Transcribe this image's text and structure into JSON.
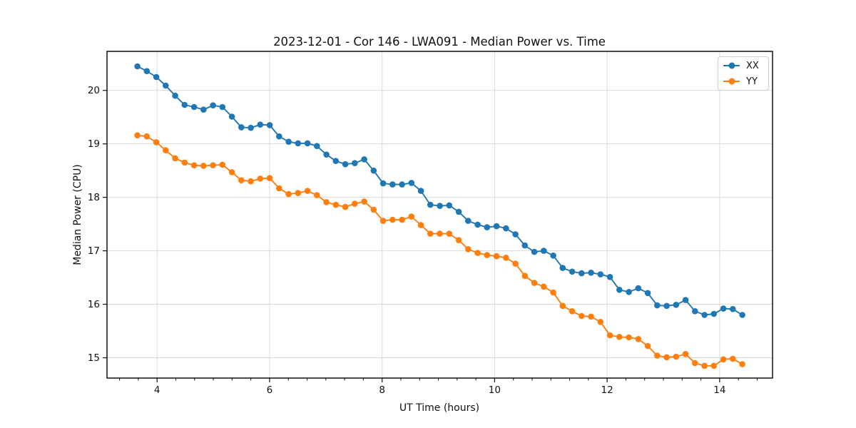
{
  "chart_data": {
    "type": "line",
    "title": "2023-12-01 - Cor 146 - LWA091 - Median Power vs. Time",
    "xlabel": "UT Time (hours)",
    "ylabel": "Median Power (CPU)",
    "xlim": [
      3.11,
      14.94
    ],
    "ylim": [
      14.62,
      20.73
    ],
    "x_ticks": [
      4,
      6,
      8,
      10,
      12,
      14
    ],
    "y_ticks": [
      15,
      16,
      17,
      18,
      19,
      20
    ],
    "x_minor_tick_step": 0.33333,
    "grid": true,
    "legend_position": "upper right",
    "colors": {
      "XX": "#1f77b4",
      "YY": "#ff7f0e"
    },
    "grid_color": "#d9d9d9",
    "x": [
      3.65,
      3.818,
      3.986,
      4.154,
      4.322,
      4.49,
      4.658,
      4.826,
      4.994,
      5.162,
      5.33,
      5.498,
      5.666,
      5.834,
      6.002,
      6.17,
      6.338,
      6.506,
      6.674,
      6.842,
      7.01,
      7.178,
      7.346,
      7.514,
      7.682,
      7.85,
      8.018,
      8.186,
      8.354,
      8.522,
      8.69,
      8.858,
      9.026,
      9.194,
      9.362,
      9.53,
      9.698,
      9.866,
      10.034,
      10.202,
      10.37,
      10.538,
      10.706,
      10.874,
      11.042,
      11.21,
      11.378,
      11.546,
      11.714,
      11.882,
      12.05,
      12.218,
      12.386,
      12.554,
      12.722,
      12.89,
      13.058,
      13.226,
      13.394,
      13.562,
      13.73,
      13.898,
      14.066,
      14.234,
      14.402
    ],
    "series": [
      {
        "name": "XX",
        "values": [
          20.45,
          20.36,
          20.25,
          20.09,
          19.9,
          19.73,
          19.69,
          19.64,
          19.72,
          19.69,
          19.51,
          19.31,
          19.3,
          19.36,
          19.35,
          19.14,
          19.04,
          19.01,
          19.01,
          18.96,
          18.8,
          18.68,
          18.62,
          18.64,
          18.71,
          18.5,
          18.26,
          18.24,
          18.24,
          18.27,
          18.12,
          17.86,
          17.84,
          17.85,
          17.73,
          17.56,
          17.49,
          17.44,
          17.46,
          17.42,
          17.31,
          17.1,
          16.98,
          17.0,
          16.91,
          16.68,
          16.61,
          16.58,
          16.59,
          16.56,
          16.51,
          16.27,
          16.23,
          16.3,
          16.21,
          15.98,
          15.97,
          15.99,
          16.08,
          15.87,
          15.8,
          15.82,
          15.92,
          15.91,
          15.8
        ]
      },
      {
        "name": "YY",
        "values": [
          19.16,
          19.14,
          19.03,
          18.88,
          18.73,
          18.65,
          18.6,
          18.59,
          18.6,
          18.61,
          18.47,
          18.32,
          18.3,
          18.35,
          18.36,
          18.17,
          18.06,
          18.08,
          18.12,
          18.04,
          17.91,
          17.86,
          17.82,
          17.88,
          17.92,
          17.77,
          17.56,
          17.58,
          17.58,
          17.64,
          17.48,
          17.32,
          17.32,
          17.32,
          17.2,
          17.03,
          16.96,
          16.92,
          16.9,
          16.87,
          16.76,
          16.53,
          16.4,
          16.33,
          16.22,
          15.97,
          15.87,
          15.78,
          15.77,
          15.67,
          15.42,
          15.39,
          15.38,
          15.35,
          15.22,
          15.04,
          15.01,
          15.02,
          15.07,
          14.9,
          14.85,
          14.85,
          14.97,
          14.98,
          14.88
        ]
      }
    ],
    "legend": [
      {
        "label": "XX"
      },
      {
        "label": "YY"
      }
    ]
  }
}
